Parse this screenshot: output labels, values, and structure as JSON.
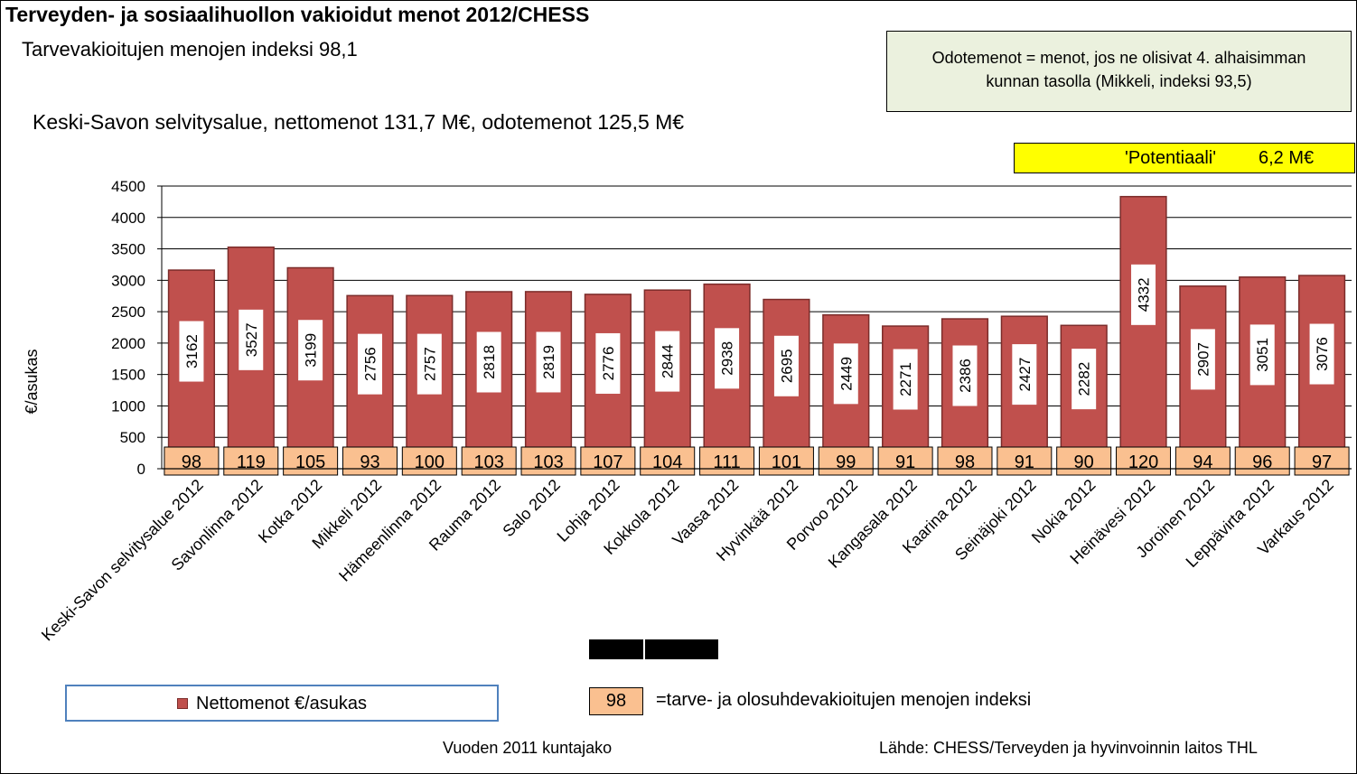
{
  "header": {
    "title": "Terveyden- ja sosiaalihuollon vakioidut menot 2012/CHESS",
    "subtitle": "Tarvevakioitujen menojen indeksi 98,1",
    "region_line": "Keski-Savon selvitysalue, nettomenot 131,7 M€, odotemenot 125,5 M€"
  },
  "note": {
    "line1": "Odotemenot = menot, jos ne olisivat 4. alhaisimman",
    "line2": "kunnan tasolla (Mikkeli, indeksi 93,5)",
    "background": "#ebf1de"
  },
  "potential": {
    "label": "'Potentiaali'",
    "value": "6,2 M€",
    "background": "#ffff00"
  },
  "legend": {
    "series_label": "Nettomenot €/asukas",
    "index_example": "98",
    "index_label": "=tarve- ja olosuhdevakioitujen menojen indeksi"
  },
  "footer": {
    "left": "Vuoden 2011 kuntajako",
    "right": "Lähde:  CHESS/Terveyden  ja hyvinvoinnin  laitos THL"
  },
  "colors": {
    "bar_fill": "#c0504d",
    "bar_stroke": "#7b2c2a",
    "index_fill": "#fac090",
    "legend_border": "#4f81bd"
  },
  "chart_data": {
    "type": "bar",
    "title": "Terveyden- ja sosiaalihuollon vakioidut menot 2012/CHESS",
    "ylabel": "€/asukas",
    "xlabel": "",
    "ylim": [
      0,
      4500
    ],
    "yticks": [
      "0",
      "500",
      "1000",
      "1500",
      "2000",
      "2500",
      "3000",
      "3500",
      "4000",
      "4500"
    ],
    "grid": true,
    "categories": [
      "Keski-Savon selvitysalue 2012",
      "Savonlinna 2012",
      "Kotka 2012",
      "Mikkeli 2012",
      "Hämeenlinna 2012",
      "Rauma 2012",
      "Salo 2012",
      "Lohja 2012",
      "Kokkola 2012",
      "Vaasa 2012",
      "Hyvinkää 2012",
      "Porvoo 2012",
      "Kangasala 2012",
      "Kaarina 2012",
      "Seinäjoki 2012",
      "Nokia 2012",
      "Heinävesi 2012",
      "Joroinen 2012",
      "Leppävirta 2012",
      "Varkaus 2012"
    ],
    "series": [
      {
        "name": "Nettomenot €/asukas",
        "values": [
          3162,
          3527,
          3199,
          2756,
          2757,
          2818,
          2819,
          2776,
          2844,
          2938,
          2695,
          2449,
          2271,
          2386,
          2427,
          2282,
          4332,
          2907,
          3051,
          3076
        ]
      }
    ],
    "index_values": [
      98,
      119,
      105,
      93,
      100,
      103,
      103,
      107,
      104,
      111,
      101,
      99,
      91,
      98,
      91,
      90,
      120,
      94,
      96,
      97
    ]
  }
}
